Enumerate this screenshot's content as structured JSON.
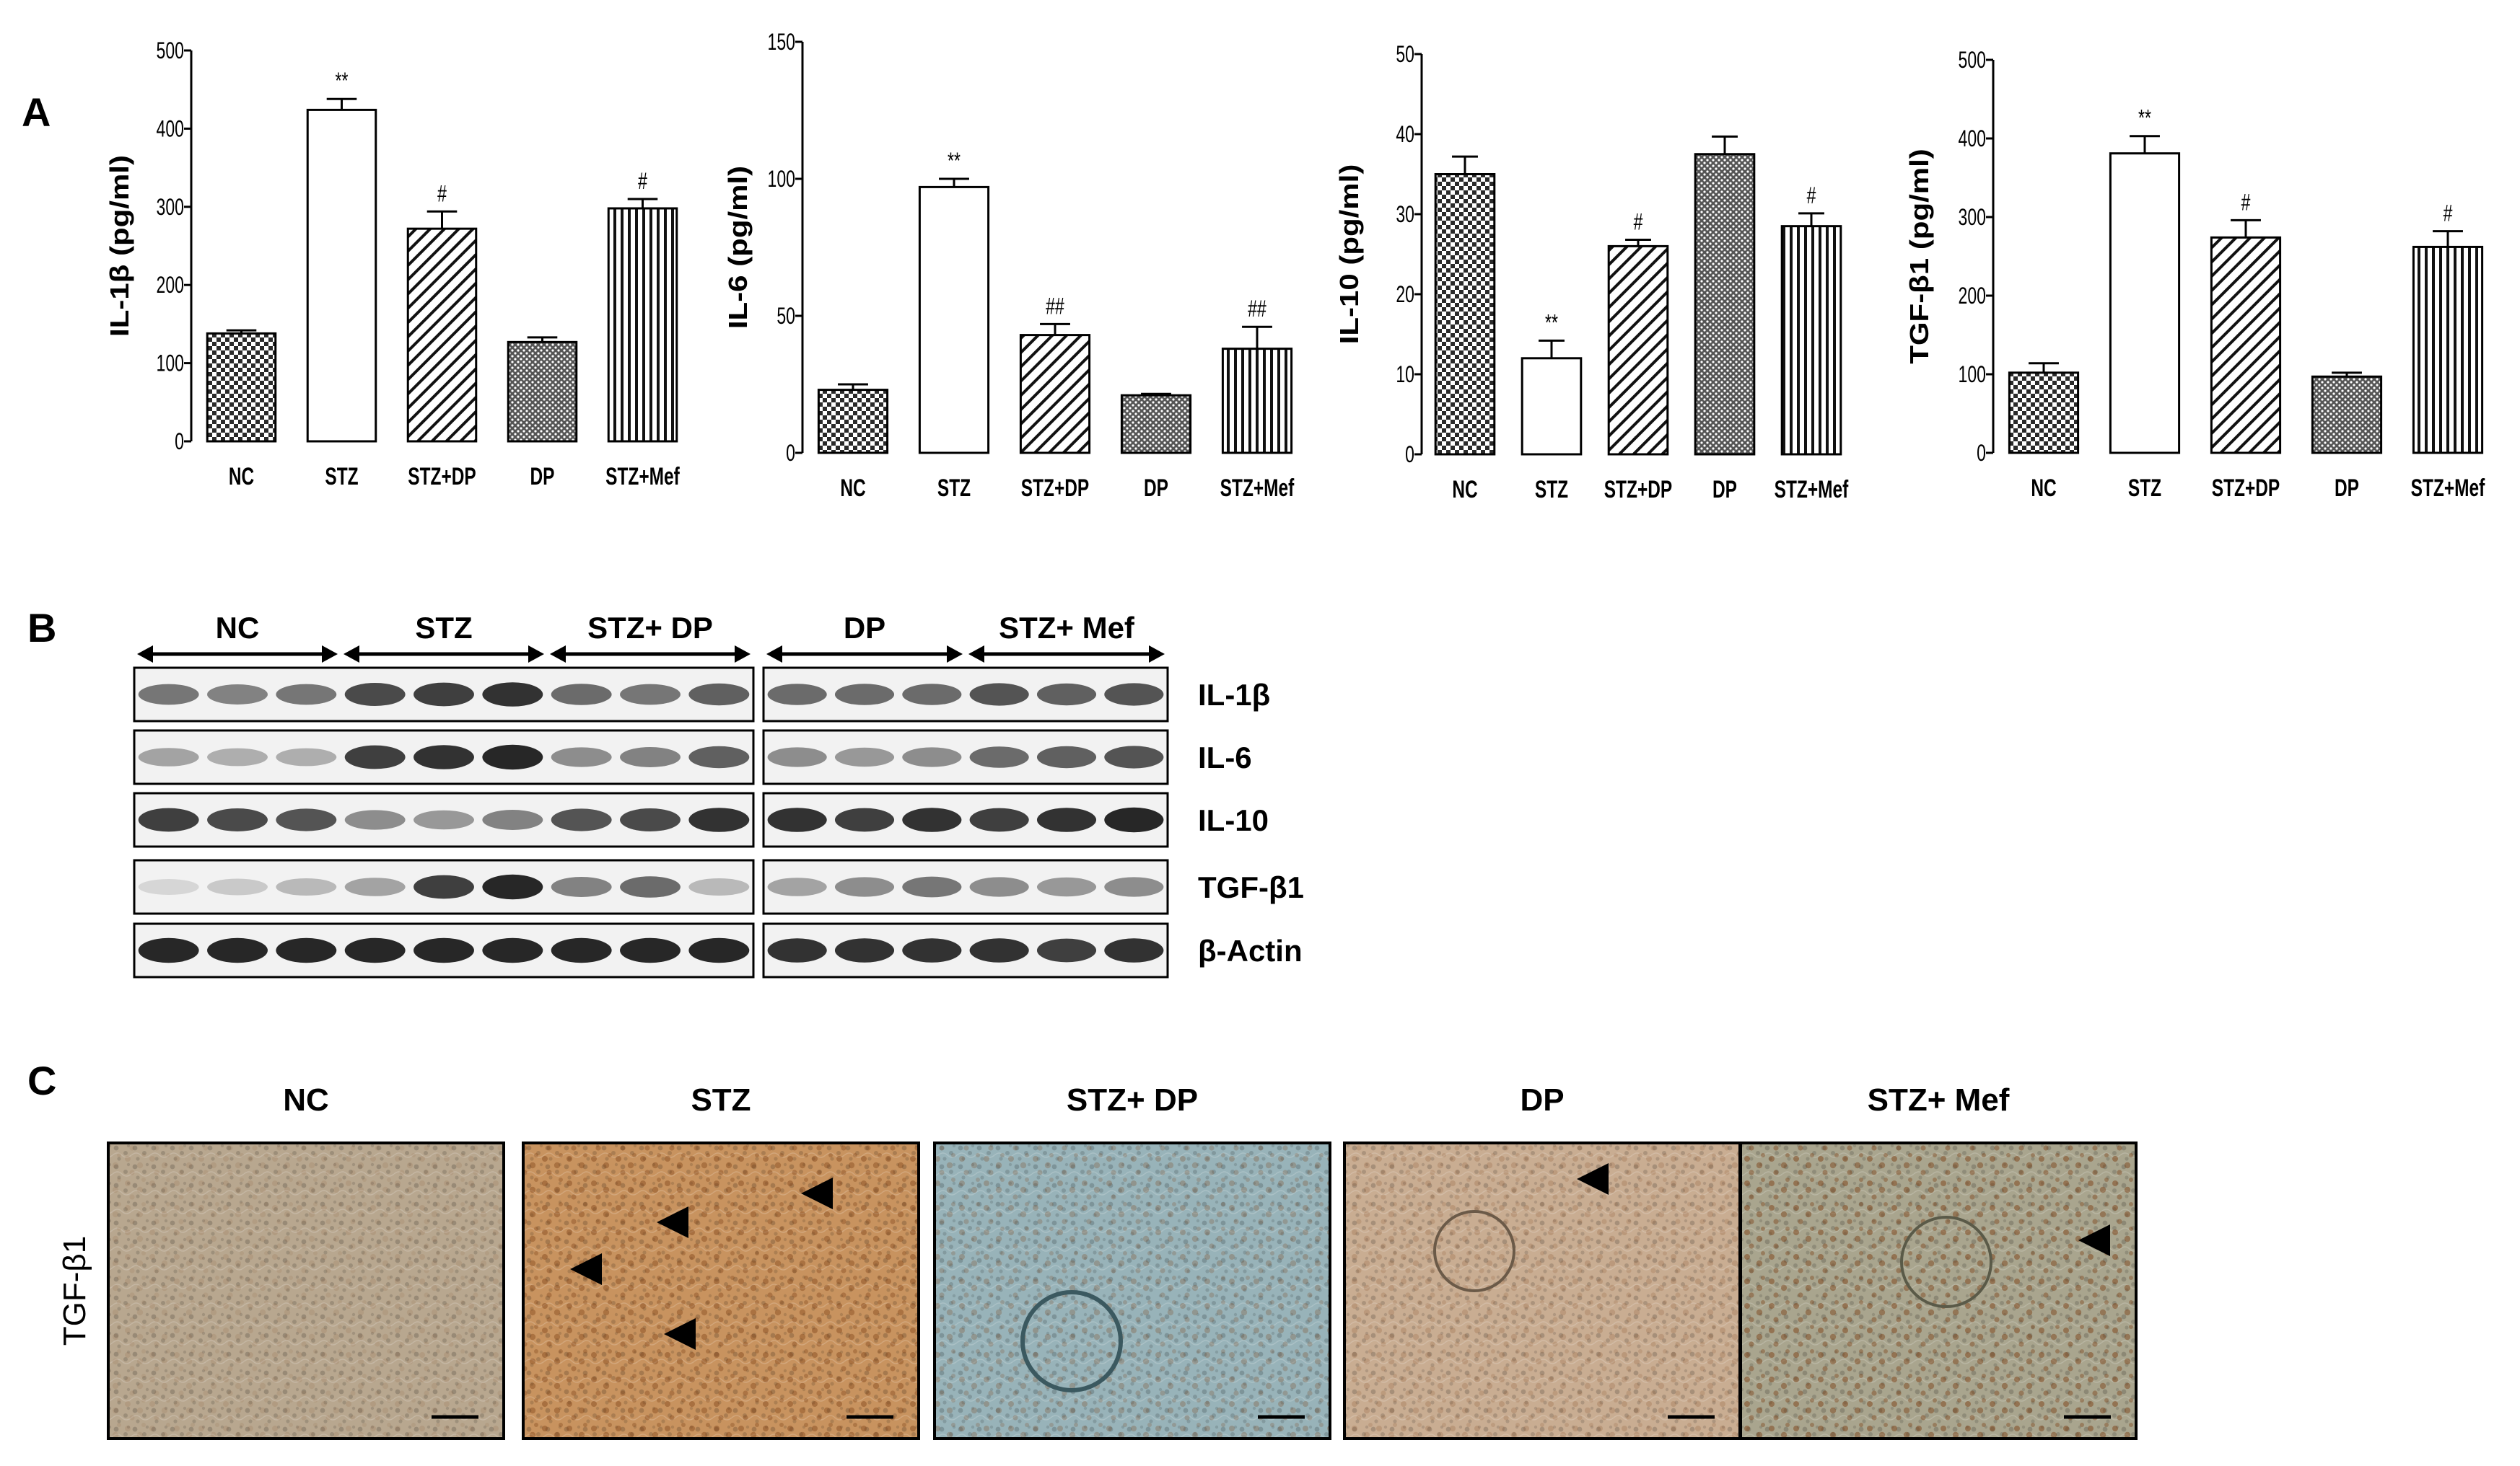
{
  "panels": {
    "A": "A",
    "B": "B",
    "C": "C"
  },
  "chart_data": [
    {
      "type": "bar",
      "ylabel": "IL-1β (pg/ml)",
      "ylim": [
        0,
        500
      ],
      "yticks": [
        "0",
        "100",
        "200",
        "300",
        "400",
        "500"
      ],
      "categories": [
        "NC",
        "STZ",
        "STZ+DP",
        "DP",
        "STZ+Mef"
      ],
      "values": [
        138,
        424,
        272,
        127,
        298
      ],
      "errors": [
        4,
        14,
        22,
        6,
        12
      ],
      "annotations": [
        "",
        "**",
        "#",
        "",
        "#"
      ]
    },
    {
      "type": "bar",
      "ylabel": "IL-6 (pg/ml)",
      "ylim": [
        0,
        150
      ],
      "yticks": [
        "0",
        "50",
        "100",
        "150"
      ],
      "categories": [
        "NC",
        "STZ",
        "STZ+DP",
        "DP",
        "STZ+Mef"
      ],
      "values": [
        23,
        97,
        43,
        21,
        38
      ],
      "errors": [
        2,
        3,
        4,
        0.5,
        8
      ],
      "annotations": [
        "",
        "**",
        "##",
        "",
        "##"
      ]
    },
    {
      "type": "bar",
      "ylabel": "IL-10 (pg/ml)",
      "ylim": [
        0,
        50
      ],
      "yticks": [
        "0",
        "10",
        "20",
        "30",
        "40",
        "50"
      ],
      "categories": [
        "NC",
        "STZ",
        "STZ+DP",
        "DP",
        "STZ+Mef"
      ],
      "values": [
        35,
        12,
        26,
        37.5,
        28.5
      ],
      "errors": [
        2.2,
        2.2,
        0.8,
        2.2,
        1.6
      ],
      "annotations": [
        "",
        "**",
        "#",
        "",
        "#"
      ]
    },
    {
      "type": "bar",
      "ylabel": "TGF-β1 (pg/ml)",
      "ylim": [
        0,
        500
      ],
      "yticks": [
        "0",
        "100",
        "200",
        "300",
        "400",
        "500"
      ],
      "categories": [
        "NC",
        "STZ",
        "STZ+DP",
        "DP",
        "STZ+Mef"
      ],
      "values": [
        102,
        381,
        274,
        97,
        262
      ],
      "errors": [
        12,
        22,
        22,
        5,
        20
      ],
      "annotations": [
        "",
        "**",
        "#",
        "",
        "#"
      ]
    }
  ],
  "western": {
    "groups_left": [
      "NC",
      "STZ",
      "STZ+ DP"
    ],
    "groups_right": [
      "DP",
      "STZ+ Mef"
    ],
    "rows": [
      "IL-1β",
      "IL-6",
      "IL-10",
      "TGF-β1",
      "β-Actin"
    ]
  },
  "ihc": {
    "row_label": "TGF-β1",
    "columns": [
      "NC",
      "STZ",
      "STZ+ DP",
      "DP",
      "STZ+ Mef"
    ]
  },
  "colors": {
    "bar_stroke": "#000000",
    "nc_fill": "#2a2a2a",
    "ihc_stzdp": "#8fb1ba",
    "ihc_brown": "#b9875e"
  }
}
